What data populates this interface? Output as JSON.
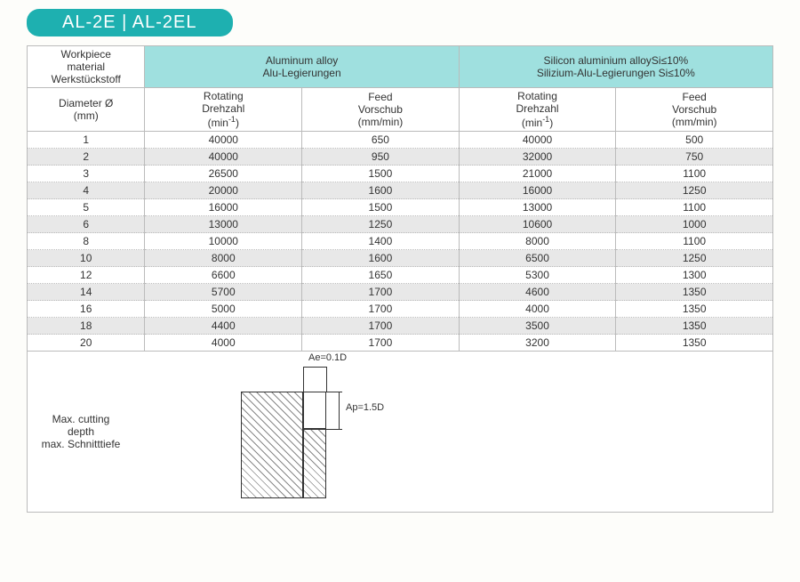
{
  "title": "AL-2E | AL-2EL",
  "headers": {
    "workpiece": [
      "Workpiece",
      "material",
      "Werkstückstoff"
    ],
    "mat1": [
      "Aluminum alloy",
      "Alu-Legierungen"
    ],
    "mat2": [
      "Silicon aluminium alloySi≤10%",
      "Silizium-Alu-Legierungen Si≤10%"
    ],
    "diameter": [
      "Diameter Ø",
      "(mm)"
    ],
    "rotating": [
      "Rotating",
      "Drehzahl"
    ],
    "rotating_unit_html": "(min<sup>-1</sup>)",
    "feed": [
      "Feed",
      "Vorschub",
      "(mm/min)"
    ]
  },
  "rows": [
    {
      "d": "1",
      "r1": "40000",
      "f1": "650",
      "r2": "40000",
      "f2": "500"
    },
    {
      "d": "2",
      "r1": "40000",
      "f1": "950",
      "r2": "32000",
      "f2": "750"
    },
    {
      "d": "3",
      "r1": "26500",
      "f1": "1500",
      "r2": "21000",
      "f2": "1100"
    },
    {
      "d": "4",
      "r1": "20000",
      "f1": "1600",
      "r2": "16000",
      "f2": "1250"
    },
    {
      "d": "5",
      "r1": "16000",
      "f1": "1500",
      "r2": "13000",
      "f2": "1100"
    },
    {
      "d": "6",
      "r1": "13000",
      "f1": "1250",
      "r2": "10600",
      "f2": "1000"
    },
    {
      "d": "8",
      "r1": "10000",
      "f1": "1400",
      "r2": "8000",
      "f2": "1100"
    },
    {
      "d": "10",
      "r1": "8000",
      "f1": "1600",
      "r2": "6500",
      "f2": "1250"
    },
    {
      "d": "12",
      "r1": "6600",
      "f1": "1650",
      "r2": "5300",
      "f2": "1300"
    },
    {
      "d": "14",
      "r1": "5700",
      "f1": "1700",
      "r2": "4600",
      "f2": "1350"
    },
    {
      "d": "16",
      "r1": "5000",
      "f1": "1700",
      "r2": "4000",
      "f2": "1350"
    },
    {
      "d": "18",
      "r1": "4400",
      "f1": "1700",
      "r2": "3500",
      "f2": "1350"
    },
    {
      "d": "20",
      "r1": "4000",
      "f1": "1700",
      "r2": "3200",
      "f2": "1350"
    }
  ],
  "diagram": {
    "label": [
      "Max. cutting",
      "depth",
      "max. Schnitttiefe"
    ],
    "ae": "Ae=0.1D",
    "ap": "Ap=1.5D"
  },
  "colors": {
    "accent": "#1eb0b0",
    "header_bg": "#9fe0df",
    "row_alt": "#e8e8e8",
    "border": "#bbbbbb"
  }
}
